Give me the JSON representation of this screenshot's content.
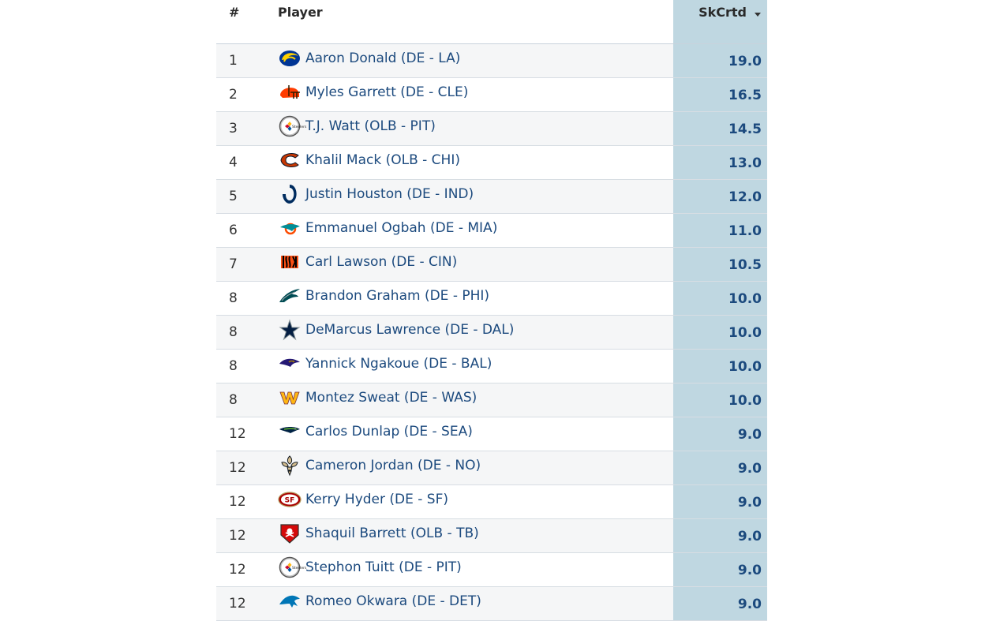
{
  "table": {
    "headers": {
      "rank": "#",
      "player": "Player",
      "stat": "SkCrtd"
    },
    "rows": [
      {
        "rank": "1",
        "player": "Aaron Donald (DE - LA)",
        "team_logo": "rams-logo-icon",
        "value": "19.0"
      },
      {
        "rank": "2",
        "player": "Myles Garrett (DE - CLE)",
        "team_logo": "browns-logo-icon",
        "value": "16.5"
      },
      {
        "rank": "3",
        "player": "T.J. Watt (OLB - PIT)",
        "team_logo": "steelers-logo-icon",
        "value": "14.5"
      },
      {
        "rank": "4",
        "player": "Khalil Mack (OLB - CHI)",
        "team_logo": "bears-logo-icon",
        "value": "13.0"
      },
      {
        "rank": "5",
        "player": "Justin Houston (DE - IND)",
        "team_logo": "colts-logo-icon",
        "value": "12.0"
      },
      {
        "rank": "6",
        "player": "Emmanuel Ogbah (DE - MIA)",
        "team_logo": "dolphins-logo-icon",
        "value": "11.0"
      },
      {
        "rank": "7",
        "player": "Carl Lawson (DE - CIN)",
        "team_logo": "bengals-logo-icon",
        "value": "10.5"
      },
      {
        "rank": "8",
        "player": "Brandon Graham (DE - PHI)",
        "team_logo": "eagles-logo-icon",
        "value": "10.0"
      },
      {
        "rank": "8",
        "player": "DeMarcus Lawrence (DE - DAL)",
        "team_logo": "cowboys-logo-icon",
        "value": "10.0"
      },
      {
        "rank": "8",
        "player": "Yannick Ngakoue (DE - BAL)",
        "team_logo": "ravens-logo-icon",
        "value": "10.0"
      },
      {
        "rank": "8",
        "player": "Montez Sweat (DE - WAS)",
        "team_logo": "washington-logo-icon",
        "value": "10.0"
      },
      {
        "rank": "12",
        "player": "Carlos Dunlap (DE - SEA)",
        "team_logo": "seahawks-logo-icon",
        "value": "9.0"
      },
      {
        "rank": "12",
        "player": "Cameron Jordan (DE - NO)",
        "team_logo": "saints-logo-icon",
        "value": "9.0"
      },
      {
        "rank": "12",
        "player": "Kerry Hyder (DE - SF)",
        "team_logo": "49ers-logo-icon",
        "value": "9.0"
      },
      {
        "rank": "12",
        "player": "Shaquil Barrett (OLB - TB)",
        "team_logo": "buccaneers-logo-icon",
        "value": "9.0"
      },
      {
        "rank": "12",
        "player": "Stephon Tuitt (DE - PIT)",
        "team_logo": "steelers-logo-icon",
        "value": "9.0"
      },
      {
        "rank": "12",
        "player": "Romeo Okwara (DE - DET)",
        "team_logo": "lions-logo-icon",
        "value": "9.0"
      }
    ]
  },
  "colors": {
    "link": "#1c4a7e",
    "sorted_column_bg": "#bfd7e1",
    "row_alt_bg": "#f5f6f7"
  }
}
